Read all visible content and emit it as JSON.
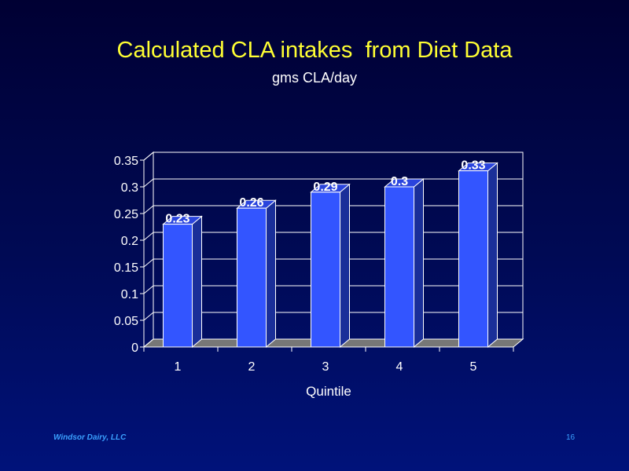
{
  "slide": {
    "title": "Calculated CLA intakes  from Diet Data",
    "subtitle": "gms CLA/day",
    "footer_left": "Windsor Dairy, LLC",
    "page_number": "16"
  },
  "colors": {
    "title": "#ffff33",
    "text": "#ffffff",
    "bar_front": "#3355ff",
    "footer": "#3aa0ff"
  },
  "chart_data": {
    "type": "bar",
    "style": "3d",
    "categories": [
      "1",
      "2",
      "3",
      "4",
      "5"
    ],
    "values": [
      0.23,
      0.26,
      0.29,
      0.3,
      0.33
    ],
    "data_labels": [
      "0.23",
      "0.26",
      "0.29",
      "0.3",
      "0.33"
    ],
    "title": "Calculated CLA intakes  from Diet Data",
    "subtitle": "gms CLA/day",
    "xlabel": "Quintile",
    "ylabel": "",
    "ylim": [
      0,
      0.35
    ],
    "yticks": [
      0,
      0.05,
      0.1,
      0.15,
      0.2,
      0.25,
      0.3,
      0.35
    ],
    "ytick_labels": [
      "0",
      "0.05",
      "0.1",
      "0.15",
      "0.2",
      "0.25",
      "0.3",
      "0.35"
    ],
    "grid": true,
    "legend": "none"
  }
}
